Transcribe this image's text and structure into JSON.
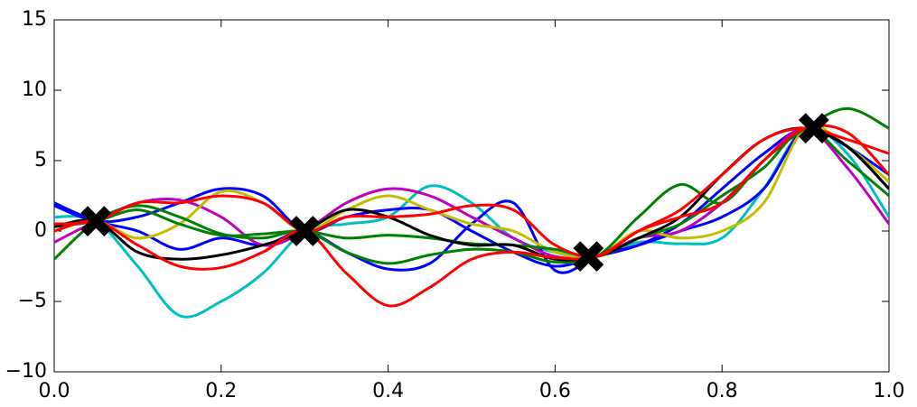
{
  "chart_data": {
    "type": "line",
    "x": [
      0,
      0.05,
      0.1,
      0.15,
      0.2,
      0.25,
      0.3,
      0.35,
      0.4,
      0.45,
      0.5,
      0.55,
      0.6,
      0.65,
      0.7,
      0.75,
      0.8,
      0.85,
      0.9,
      0.95,
      1
    ],
    "series": [
      {
        "color": "#00bfbf",
        "values": [
          1,
          0.7,
          -2.5,
          -6,
          -5,
          -3,
          0,
          0.5,
          1,
          3.2,
          2,
          -0.5,
          -1.5,
          -1.8,
          -0.8,
          -0.9,
          -0.5,
          3,
          7.3,
          5.5,
          1
        ]
      },
      {
        "color": "#0000ff",
        "values": [
          2,
          0.7,
          0,
          -1.3,
          -0.5,
          -1,
          0,
          -1.5,
          -2.7,
          -2.3,
          0.5,
          2,
          -2.8,
          -1.8,
          -1,
          0,
          1,
          3,
          7.3,
          6,
          3
        ]
      },
      {
        "color": "#0000ff",
        "values": [
          1.8,
          0.7,
          1,
          2,
          3,
          2.5,
          0,
          1,
          1.5,
          1.5,
          0,
          -1.5,
          -2.5,
          -1.8,
          -1,
          0.5,
          3,
          5.5,
          7.3,
          6,
          4
        ]
      },
      {
        "color": "#bf00bf",
        "values": [
          -0.8,
          0.7,
          2,
          2.2,
          1,
          -1,
          0,
          2,
          3,
          2.5,
          1,
          -0.5,
          -1.8,
          -1.8,
          -0.5,
          0,
          2,
          5,
          7.3,
          4.5,
          0.5
        ]
      },
      {
        "color": "#bfbf00",
        "values": [
          0,
          0.7,
          -0.5,
          0.5,
          2.8,
          2,
          0,
          1.5,
          2.5,
          1.5,
          0.5,
          0,
          -1.5,
          -1.8,
          0,
          -0.5,
          0,
          2,
          7.3,
          6,
          3.5
        ]
      },
      {
        "color": "#008000",
        "values": [
          0.3,
          0.7,
          1.5,
          0.5,
          -0.3,
          -0.2,
          0,
          -0.5,
          -0.3,
          -0.5,
          -0.9,
          -1,
          -1.3,
          -1.8,
          -0.5,
          0.5,
          2.5,
          4.5,
          7.3,
          5,
          2.5
        ]
      },
      {
        "color": "#008000",
        "values": [
          -2,
          0.7,
          1.8,
          1,
          -0.2,
          -0.5,
          0,
          -1.5,
          -2.3,
          -1.7,
          -1.3,
          -1.5,
          -2.2,
          -1.8,
          1,
          3.3,
          2,
          5,
          7.3,
          8.7,
          7.3
        ]
      },
      {
        "color": "#000000",
        "values": [
          0.3,
          0.7,
          -1.5,
          -2,
          -1.7,
          -1,
          0,
          1.5,
          1,
          -0.3,
          -1,
          -1,
          -2,
          -1.8,
          -0.5,
          1,
          4,
          6.5,
          7.3,
          6,
          3
        ]
      },
      {
        "color": "#ff0000",
        "values": [
          0.5,
          0.7,
          2,
          2,
          2.5,
          2,
          0,
          1,
          1,
          1.2,
          1.8,
          1.5,
          -1,
          -1.8,
          0,
          1,
          2,
          5,
          7.3,
          7,
          4
        ]
      },
      {
        "color": "#ff0000",
        "values": [
          0,
          0.7,
          -1,
          -2.5,
          -2.6,
          -1.5,
          0,
          -3,
          -5.3,
          -4,
          -2,
          -1.5,
          -1.9,
          -1.8,
          0,
          1.5,
          4,
          6.5,
          7.3,
          6.5,
          5.5
        ]
      }
    ],
    "observations": {
      "color": "#000000",
      "x": [
        0.05,
        0.3,
        0.64,
        0.91
      ],
      "y": [
        0.7,
        0,
        -1.8,
        7.3
      ]
    },
    "xlim": [
      0,
      1
    ],
    "ylim": [
      -10,
      15
    ],
    "xticks": [
      {
        "value": 0,
        "label": "0.0"
      },
      0.2,
      0.4,
      0.6,
      0.8,
      {
        "value": 1,
        "label": "1.0"
      }
    ],
    "yticks": [
      {
        "value": -10,
        "label": "−10"
      },
      {
        "value": -5,
        "label": "−5"
      },
      0,
      5,
      10,
      15
    ]
  }
}
